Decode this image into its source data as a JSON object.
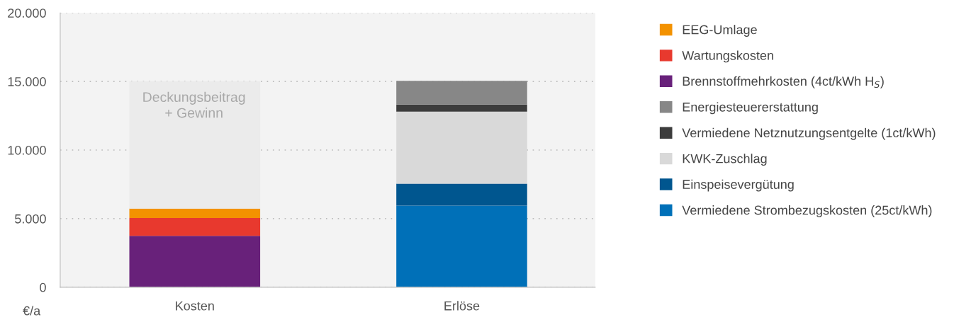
{
  "chart_data": {
    "type": "bar",
    "stacked": true,
    "categories": [
      "Kosten",
      "Erlöse"
    ],
    "ylabel": "€/a",
    "ylim": [
      0,
      20000
    ],
    "yticks": [
      {
        "value": 0,
        "label": "0"
      },
      {
        "value": 5000,
        "label": "5.000"
      },
      {
        "value": 10000,
        "label": "10.000"
      },
      {
        "value": 15000,
        "label": "15.000"
      },
      {
        "value": 20000,
        "label": "20.000"
      }
    ],
    "grid": "y",
    "legend": "right",
    "series": [
      {
        "name": "Vermiedene Strombezugskosten (25ct/kWh)",
        "color": "#0070b8",
        "values": [
          null,
          5950
        ]
      },
      {
        "name": "Einspeisevergütung",
        "color": "#00568f",
        "values": [
          null,
          1600
        ]
      },
      {
        "name": "KWK-Zuschlag",
        "color": "#d9d9d9",
        "values": [
          null,
          5250
        ]
      },
      {
        "name": "Vermiedene Netznutzungsentgelte (1ct/kWh)",
        "color": "#3c3c3c",
        "values": [
          null,
          520
        ]
      },
      {
        "name": "Energiesteuererstattung",
        "color": "#878787",
        "values": [
          null,
          1720
        ]
      },
      {
        "name": "Brennstoffmehrkosten (4ct/kWh H$_{S}$)",
        "color": "#68217a",
        "values": [
          3750,
          null
        ]
      },
      {
        "name": "Wartungskosten",
        "color": "#e8392e",
        "values": [
          1300,
          null
        ]
      },
      {
        "name": "EEG-Umlage",
        "color": "#f39200",
        "values": [
          680,
          null
        ]
      },
      {
        "color": "#ebebeb",
        "values": [
          9270,
          null
        ]
      }
    ],
    "annotations": [
      "Deckungsbeitrag\n+ Gewinn"
    ]
  }
}
